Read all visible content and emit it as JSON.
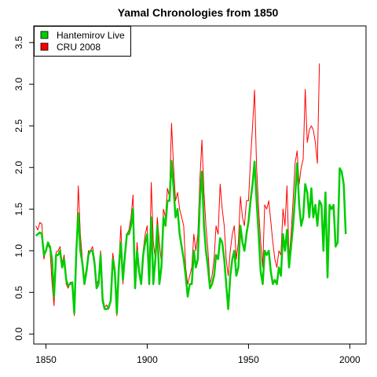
{
  "chart_data": {
    "type": "line",
    "title": "Yamal Chronologies from 1850",
    "xlabel": "",
    "ylabel": "",
    "xlim": [
      1844,
      2008
    ],
    "ylim": [
      -0.12,
      3.7
    ],
    "xticks": [
      1850,
      1900,
      1950,
      2000
    ],
    "yticks": [
      0.0,
      0.5,
      1.0,
      1.5,
      2.0,
      2.5,
      3.0,
      3.5
    ],
    "ytick_labels": [
      "0.0",
      "0.5",
      "1.0",
      "1.5",
      "2.0",
      "2.5",
      "3.0",
      "3.5"
    ],
    "grid": false,
    "legend_position": "top-left",
    "series": [
      {
        "name": "CRU 2008",
        "color": "#FF0000",
        "line_width": 1,
        "x_start": 1845,
        "values": [
          1.3,
          1.25,
          1.34,
          1.32,
          0.9,
          1.02,
          1.07,
          1.02,
          0.62,
          0.34,
          0.98,
          1.0,
          1.05,
          0.85,
          0.95,
          0.6,
          0.55,
          0.62,
          0.62,
          0.22,
          1.03,
          1.78,
          1.2,
          0.9,
          0.65,
          0.8,
          1.0,
          1.0,
          1.05,
          0.9,
          0.6,
          0.65,
          1.0,
          0.45,
          0.32,
          0.35,
          0.3,
          0.4,
          0.97,
          0.8,
          0.22,
          0.85,
          1.3,
          0.6,
          1.0,
          1.2,
          1.25,
          1.4,
          1.67,
          0.65,
          1.1,
          0.8,
          0.6,
          1.0,
          1.2,
          1.3,
          0.7,
          1.82,
          1.1,
          0.9,
          1.4,
          1.1,
          0.85,
          1.5,
          1.4,
          1.75,
          1.65,
          2.53,
          2.0,
          1.6,
          1.7,
          1.5,
          1.4,
          1.3,
          0.8,
          0.6,
          0.7,
          0.8,
          1.2,
          1.0,
          1.2,
          1.85,
          2.33,
          1.7,
          1.3,
          1.0,
          0.6,
          0.7,
          0.9,
          1.3,
          1.2,
          1.8,
          1.5,
          1.3,
          0.9,
          0.7,
          1.0,
          1.2,
          1.3,
          0.9,
          1.1,
          1.65,
          1.4,
          1.3,
          1.6,
          1.6,
          2.1,
          2.5,
          2.93,
          2.0,
          1.5,
          1.1,
          0.8,
          1.55,
          1.5,
          1.6,
          1.35,
          1.1,
          0.9,
          0.8,
          1.0,
          0.95,
          1.5,
          1.3,
          1.78,
          0.9,
          1.2,
          1.6,
          2.05,
          2.2,
          1.8,
          2.0,
          2.1,
          2.94,
          2.3,
          2.45,
          2.5,
          2.45,
          2.3,
          2.05,
          3.25
        ]
      },
      {
        "name": "Hantemirov Live",
        "color": "#00CC00",
        "line_width": 2.5,
        "x_start": 1845,
        "values": [
          1.18,
          1.2,
          1.22,
          1.2,
          0.95,
          1.0,
          1.1,
          1.05,
          0.9,
          0.45,
          0.95,
          0.95,
          1.0,
          0.8,
          0.9,
          0.65,
          0.58,
          0.6,
          0.62,
          0.25,
          1.0,
          1.45,
          1.0,
          0.85,
          0.6,
          0.75,
          0.95,
          1.0,
          1.0,
          0.85,
          0.55,
          0.6,
          0.95,
          0.4,
          0.3,
          0.3,
          0.32,
          0.4,
          0.9,
          0.75,
          0.25,
          0.8,
          1.1,
          0.65,
          0.95,
          1.2,
          1.2,
          1.3,
          1.5,
          0.55,
          1.0,
          0.75,
          0.6,
          0.95,
          1.1,
          1.2,
          0.6,
          1.4,
          0.6,
          0.9,
          1.3,
          0.6,
          0.8,
          1.4,
          1.3,
          1.6,
          1.6,
          2.08,
          1.75,
          1.4,
          1.5,
          1.2,
          1.05,
          0.9,
          0.7,
          0.45,
          0.6,
          0.6,
          1.0,
          0.8,
          0.9,
          1.6,
          1.95,
          1.3,
          1.0,
          0.8,
          0.55,
          0.6,
          0.7,
          0.95,
          0.9,
          1.15,
          1.1,
          0.9,
          0.6,
          0.3,
          0.7,
          0.9,
          1.0,
          0.7,
          0.8,
          1.3,
          1.1,
          1.0,
          1.2,
          1.35,
          1.6,
          1.8,
          2.07,
          1.6,
          1.2,
          0.75,
          0.6,
          1.0,
          0.95,
          1.0,
          0.75,
          0.6,
          0.65,
          0.6,
          0.8,
          0.7,
          1.2,
          1.0,
          1.25,
          0.8,
          1.05,
          1.3,
          1.65,
          2.05,
          1.55,
          1.3,
          1.4,
          1.8,
          1.7,
          1.4,
          1.75,
          1.4,
          1.55,
          1.3,
          1.6,
          1.55,
          1.0,
          1.7,
          0.68,
          1.55,
          1.5,
          1.55,
          1.05,
          1.1,
          1.99,
          1.95,
          1.8,
          1.2
        ]
      }
    ]
  }
}
